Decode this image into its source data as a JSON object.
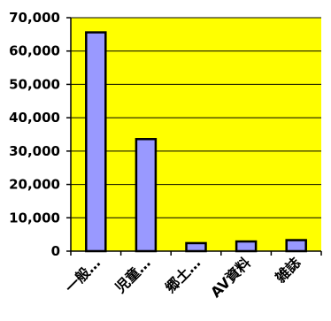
{
  "chart_data": {
    "type": "bar",
    "title": "",
    "xlabel": "",
    "ylabel": "",
    "categories": [
      "一般…",
      "児童…",
      "郷土…",
      "AV資料",
      "雑誌"
    ],
    "values": [
      65600,
      33600,
      2400,
      2900,
      3300
    ],
    "ylim": [
      0,
      70000
    ],
    "yticks": [
      0,
      10000,
      20000,
      30000,
      40000,
      50000,
      60000,
      70000
    ],
    "ytick_labels": [
      "0",
      "10,000",
      "20,000",
      "30,000",
      "40,000",
      "50,000",
      "60,000",
      "70,000"
    ],
    "grid": true,
    "legend": "none",
    "colors": {
      "plot_background": "#ffff00",
      "bar_fill": "#9999ff",
      "bar_stroke": "#000000",
      "gridline": "#000000"
    }
  }
}
